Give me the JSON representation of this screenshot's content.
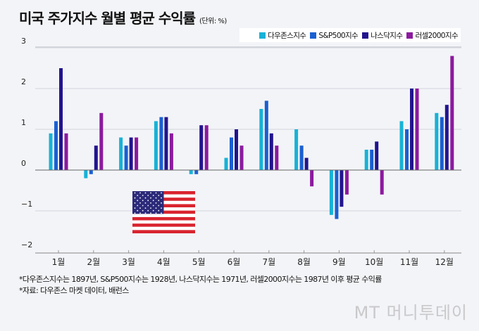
{
  "title": "미국 주가지수 월별 평균 수익률",
  "unit": "(단위: %)",
  "notes": [
    "*다우존스지수는 1897년, S&P500지수는 1928년, 나스닥지수는 1971년, 러셀2000지수는 1987년 이후 평균 수익률",
    "*자료: 다우존스 마켓 데이터, 배런스"
  ],
  "watermark": "MT 머니투데이",
  "chart_data": {
    "type": "bar",
    "title": "미국 주가지수 월별 평균 수익률",
    "ylabel": "%",
    "ylim": [
      -2,
      3
    ],
    "yticks": [
      "3",
      "2",
      "1",
      "0",
      "−1",
      "−2"
    ],
    "ytick_values": [
      3,
      2,
      1,
      0,
      -1,
      -2
    ],
    "grid": true,
    "legend_position": "top-right",
    "categories": [
      "1월",
      "2월",
      "3월",
      "4월",
      "5월",
      "6월",
      "7월",
      "8월",
      "9월",
      "10월",
      "11월",
      "12월"
    ],
    "series": [
      {
        "name": "다우존스지수",
        "color": "#17b2d6",
        "values": [
          0.9,
          -0.2,
          0.8,
          1.2,
          -0.1,
          0.3,
          1.5,
          1.0,
          -1.1,
          0.5,
          1.2,
          1.4
        ]
      },
      {
        "name": "S&P500지수",
        "color": "#1a5fd1",
        "values": [
          1.2,
          -0.1,
          0.6,
          1.3,
          -0.1,
          0.8,
          1.7,
          0.6,
          -1.2,
          0.5,
          1.0,
          1.3
        ]
      },
      {
        "name": "나스닥지수",
        "color": "#22148e",
        "values": [
          2.5,
          0.6,
          0.8,
          1.3,
          1.1,
          1.0,
          0.9,
          0.3,
          -0.9,
          0.7,
          2.0,
          1.6
        ]
      },
      {
        "name": "러셀2000지수",
        "color": "#8b1a9e",
        "values": [
          0.9,
          1.4,
          0.8,
          0.9,
          1.1,
          0.6,
          0.6,
          -0.4,
          -0.6,
          -0.6,
          2.0,
          2.8
        ]
      }
    ]
  }
}
